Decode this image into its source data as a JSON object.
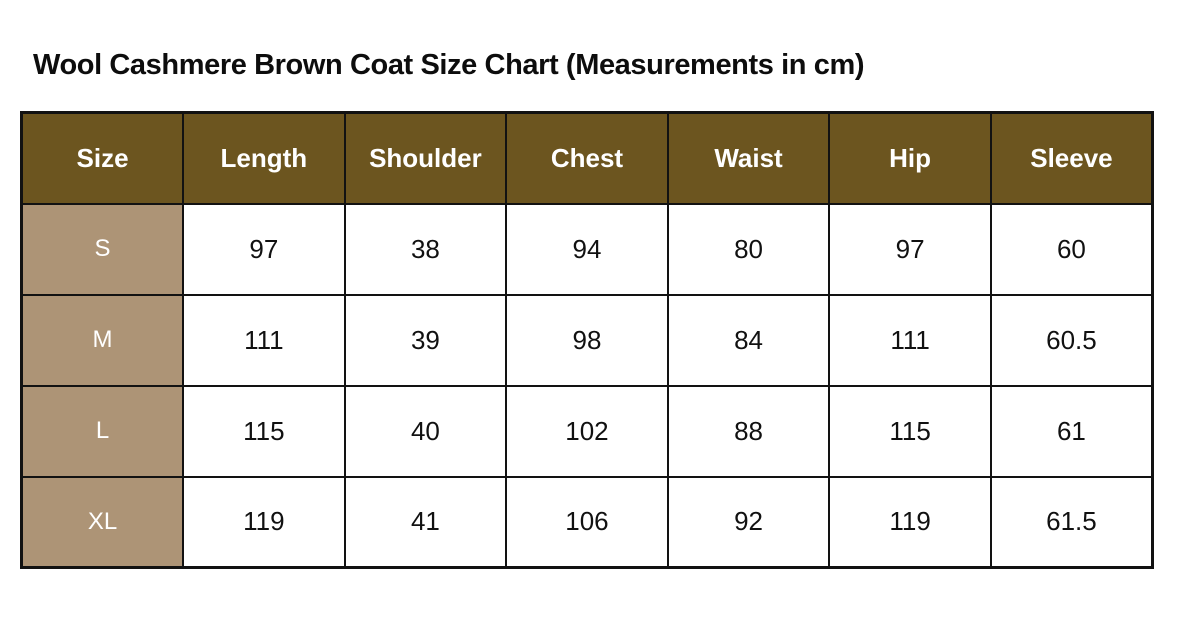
{
  "page": {
    "title": "Wool Cashmere Brown Coat Size Chart (Measurements in cm)",
    "background": "#FFFFFF"
  },
  "size_chart": {
    "columns": [
      "Size",
      "Length",
      "Shoulder",
      "Chest",
      "Waist",
      "Hip",
      "Sleeve"
    ],
    "rows": [
      {
        "size": "S",
        "values": [
          "97",
          "38",
          "94",
          "80",
          "97",
          "60"
        ]
      },
      {
        "size": "M",
        "values": [
          "111",
          "39",
          "98",
          "84",
          "111",
          "60.5"
        ]
      },
      {
        "size": "L",
        "values": [
          "115",
          "40",
          "102",
          "88",
          "115",
          "61"
        ]
      },
      {
        "size": "XL",
        "values": [
          "119",
          "41",
          "106",
          "92",
          "119",
          "61.5"
        ]
      }
    ],
    "colors": {
      "header_bg": "#6C551F",
      "header_text": "#FFFFFF",
      "size_column_bg": "#AD9476",
      "size_column_text": "#FFFFFF",
      "cell_bg": "#FFFFFF",
      "cell_text": "#111111",
      "border": "#121212"
    }
  },
  "chart_data": {
    "type": "table",
    "title": "Wool Cashmere Brown Coat Size Chart (Measurements in cm)",
    "unit": "cm",
    "columns": [
      "Size",
      "Length",
      "Shoulder",
      "Chest",
      "Waist",
      "Hip",
      "Sleeve"
    ],
    "rows": [
      [
        "S",
        97,
        38,
        94,
        80,
        97,
        60
      ],
      [
        "M",
        111,
        39,
        98,
        84,
        111,
        60.5
      ],
      [
        "L",
        115,
        40,
        102,
        88,
        115,
        61
      ],
      [
        "XL",
        119,
        41,
        106,
        92,
        119,
        61.5
      ]
    ]
  }
}
